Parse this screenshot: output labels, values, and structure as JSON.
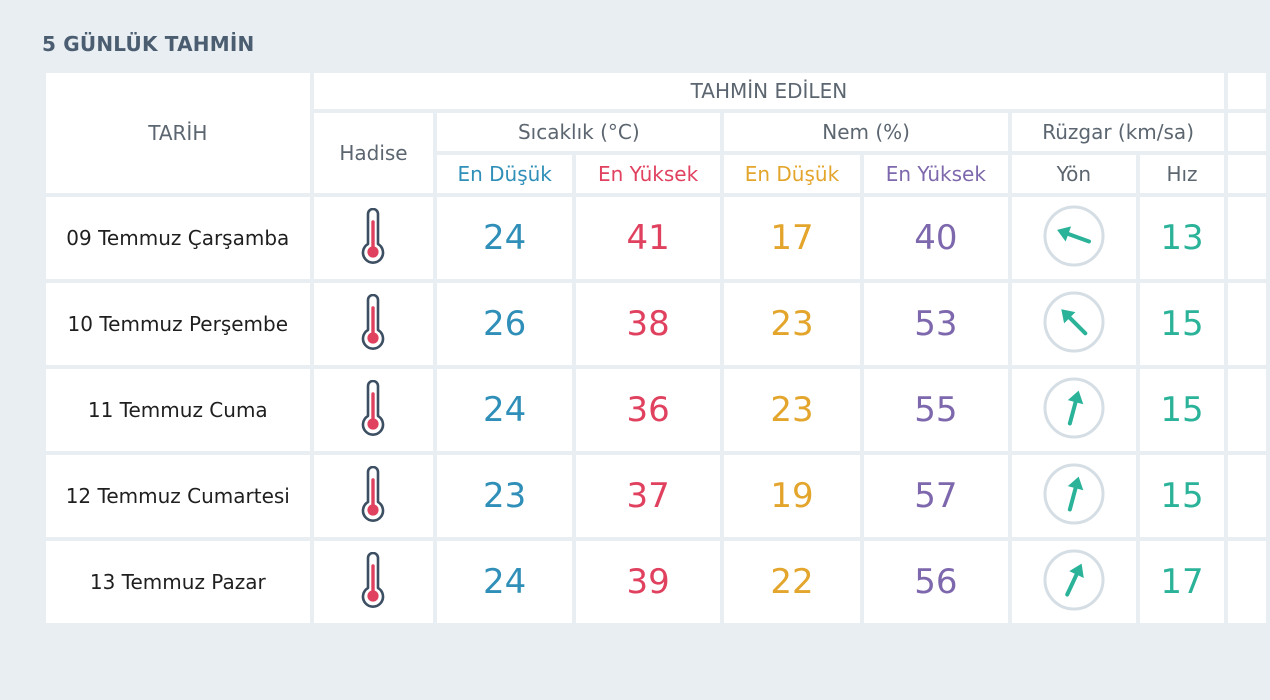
{
  "title": "5 GÜNLÜK TAHMİN",
  "header": {
    "date": "TARİH",
    "forecast_group": "TAHMİN EDİLEN",
    "event": "Hadise",
    "temperature": "Sıcaklık (°C)",
    "humidity": "Nem (%)",
    "wind": "Rüzgar (km/sa)",
    "min": "En Düşük",
    "max": "En Yüksek",
    "direction": "Yön",
    "speed": "Hız"
  },
  "colors": {
    "temp_low": "#2f8fb8",
    "temp_high": "#e0415f",
    "hum_low": "#e3a52c",
    "hum_high": "#7e68ad",
    "wind": "#2bb39a"
  },
  "rows": [
    {
      "date": "09 Temmuz Çarşamba",
      "icon": "thermometer-hot-icon",
      "temp_min": "24",
      "temp_max": "41",
      "hum_min": "17",
      "hum_max": "40",
      "wind_dir_deg": 110,
      "wind_speed": "13"
    },
    {
      "date": "10 Temmuz Perşembe",
      "icon": "thermometer-hot-icon",
      "temp_min": "26",
      "temp_max": "38",
      "hum_min": "23",
      "hum_max": "53",
      "wind_dir_deg": 135,
      "wind_speed": "15"
    },
    {
      "date": "11 Temmuz Cuma",
      "icon": "thermometer-hot-icon",
      "temp_min": "24",
      "temp_max": "36",
      "hum_min": "23",
      "hum_max": "55",
      "wind_dir_deg": 195,
      "wind_speed": "15"
    },
    {
      "date": "12 Temmuz Cumartesi",
      "icon": "thermometer-hot-icon",
      "temp_min": "23",
      "temp_max": "37",
      "hum_min": "19",
      "hum_max": "57",
      "wind_dir_deg": 195,
      "wind_speed": "15"
    },
    {
      "date": "13 Temmuz Pazar",
      "icon": "thermometer-hot-icon",
      "temp_min": "24",
      "temp_max": "39",
      "hum_min": "22",
      "hum_max": "56",
      "wind_dir_deg": 205,
      "wind_speed": "17"
    }
  ]
}
